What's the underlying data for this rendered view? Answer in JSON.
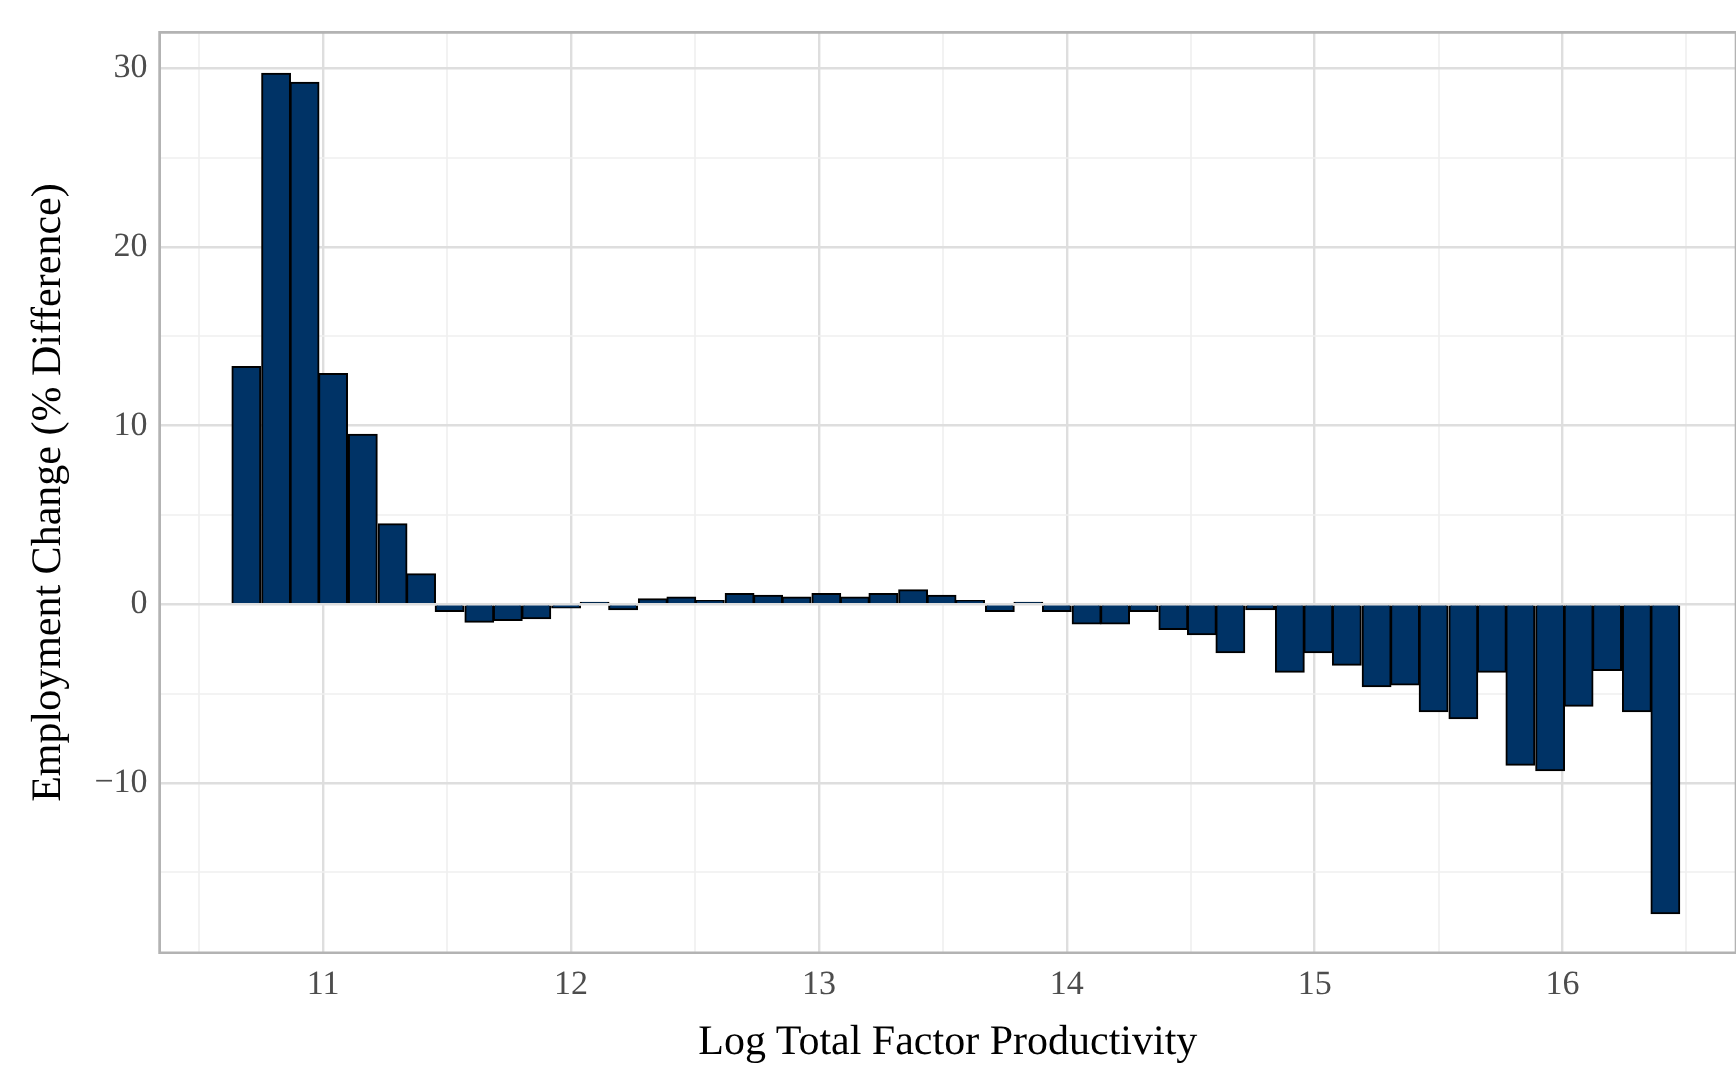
{
  "chart_data": {
    "type": "histogram",
    "xlabel": "Log Total Factor Productivity",
    "ylabel": "Employment Change (% Difference)",
    "bins": [
      10.63,
      10.75,
      10.87,
      10.98,
      11.1,
      11.22,
      11.34,
      11.45,
      11.57,
      11.69,
      11.8,
      11.92,
      12.04,
      12.15,
      12.27,
      12.39,
      12.5,
      12.62,
      12.74,
      12.85,
      12.97,
      13.09,
      13.2,
      13.32,
      13.44,
      13.55,
      13.67,
      13.79,
      13.9,
      14.02,
      14.14,
      14.25,
      14.37,
      14.49,
      14.6,
      14.72,
      14.84,
      14.96,
      15.07,
      15.19,
      15.31,
      15.42,
      15.54,
      15.66,
      15.77,
      15.89,
      16.01,
      16.12,
      16.24,
      16.36,
      16.47
    ],
    "values": [
      13.3,
      29.7,
      29.2,
      12.9,
      9.5,
      4.5,
      1.7,
      -0.4,
      -1.0,
      -0.9,
      -0.8,
      -0.2,
      0.1,
      -0.3,
      0.3,
      0.4,
      0.2,
      0.6,
      0.5,
      0.4,
      0.6,
      0.4,
      0.6,
      0.8,
      0.5,
      0.2,
      -0.4,
      0.1,
      -0.4,
      -1.1,
      -1.1,
      -0.4,
      -1.4,
      -1.7,
      -2.7,
      -0.3,
      -3.8,
      -2.7,
      -3.4,
      -4.6,
      -4.5,
      -6.0,
      -6.4,
      -3.8,
      -9.0,
      -9.3,
      -5.7,
      -3.7,
      -6.0,
      -17.3
    ],
    "color": "#003366",
    "xlim": [
      10.34,
      16.7
    ],
    "xticks": [
      {
        "value": 10.5,
        "label": null
      },
      11,
      {
        "value": 11.5,
        "label": null
      },
      12,
      {
        "value": 12.5,
        "label": null
      },
      13,
      {
        "value": 13.5,
        "label": null
      },
      14,
      {
        "value": 14.5,
        "label": null
      },
      15,
      {
        "value": 15.5,
        "label": null
      },
      16,
      {
        "value": 16.5,
        "label": null
      }
    ],
    "ylim": [
      -19.5,
      32
    ],
    "yticks": [
      {
        "value": -15,
        "label": null
      },
      {
        "value": -10,
        "label": "−10"
      },
      {
        "value": -5,
        "label": null
      },
      0,
      {
        "value": 5,
        "label": null
      },
      10,
      {
        "value": 15,
        "label": null
      },
      20,
      {
        "value": 25,
        "label": null
      },
      30
    ],
    "grid": true
  }
}
